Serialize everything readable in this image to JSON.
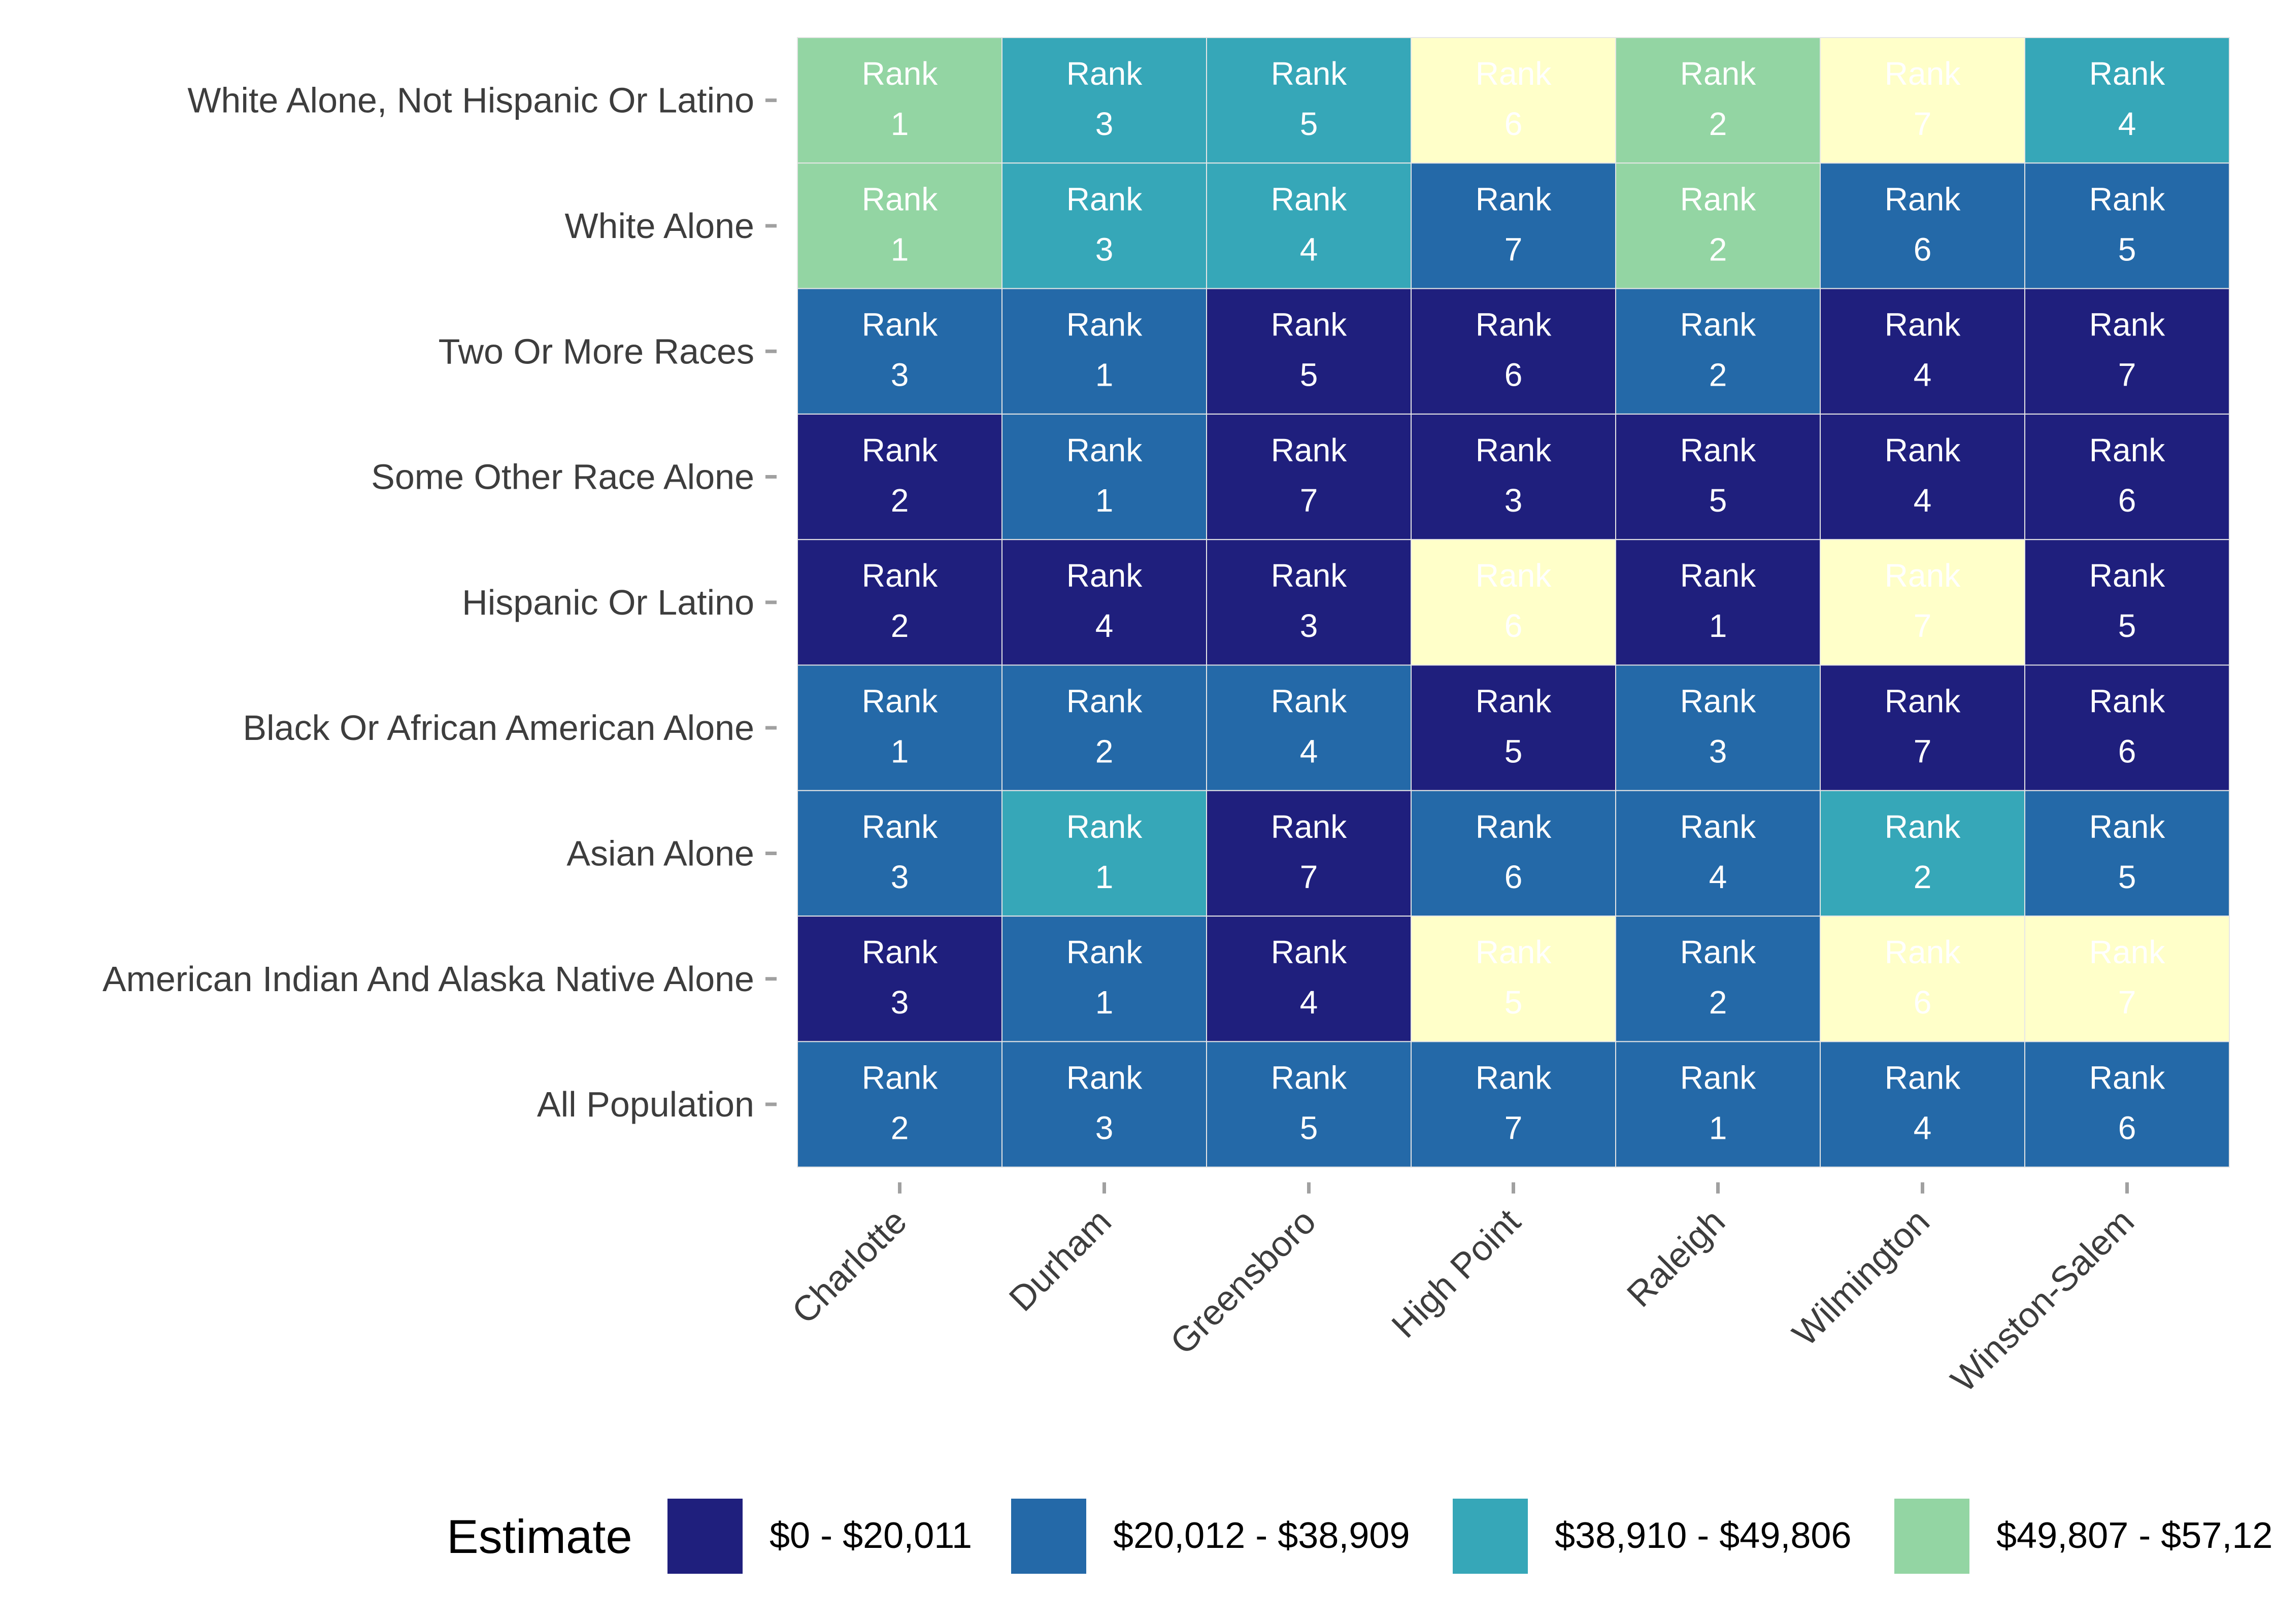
{
  "chart_data": {
    "type": "heatmap",
    "title": "",
    "xlabel": "",
    "ylabel": "",
    "cell_label_prefix": "Rank",
    "x_categories": [
      "Charlotte",
      "Durham",
      "Greensboro",
      "High Point",
      "Raleigh",
      "Wilmington",
      "Winston-Salem"
    ],
    "y_categories": [
      "White Alone, Not Hispanic Or Latino",
      "White Alone",
      "Two Or More Races",
      "Some Other Race Alone",
      "Hispanic Or Latino",
      "Black Or African American Alone",
      "Asian Alone",
      "American Indian And Alaska Native Alone",
      "All Population"
    ],
    "ranks": [
      [
        1,
        3,
        5,
        6,
        2,
        7,
        4
      ],
      [
        1,
        3,
        4,
        7,
        2,
        6,
        5
      ],
      [
        3,
        1,
        5,
        6,
        2,
        4,
        7
      ],
      [
        2,
        1,
        7,
        3,
        5,
        4,
        6
      ],
      [
        2,
        4,
        3,
        6,
        1,
        7,
        5
      ],
      [
        1,
        2,
        4,
        5,
        3,
        7,
        6
      ],
      [
        3,
        1,
        7,
        6,
        4,
        2,
        5
      ],
      [
        3,
        1,
        4,
        5,
        2,
        6,
        7
      ],
      [
        2,
        3,
        5,
        7,
        1,
        4,
        6
      ]
    ],
    "estimate_bins": [
      [
        3,
        2,
        2,
        4,
        3,
        4,
        2
      ],
      [
        3,
        2,
        2,
        1,
        3,
        1,
        1
      ],
      [
        1,
        1,
        0,
        0,
        1,
        0,
        0
      ],
      [
        0,
        1,
        0,
        0,
        0,
        0,
        0
      ],
      [
        0,
        0,
        0,
        4,
        0,
        4,
        0
      ],
      [
        1,
        1,
        1,
        0,
        1,
        0,
        0
      ],
      [
        1,
        2,
        0,
        1,
        1,
        2,
        1
      ],
      [
        0,
        1,
        0,
        4,
        1,
        4,
        4
      ],
      [
        1,
        1,
        1,
        1,
        1,
        1,
        1
      ]
    ],
    "legend": {
      "title": "Estimate",
      "position": "bottom",
      "bins": [
        {
          "label": "$0 - $20,011",
          "color": "#1f1f7d"
        },
        {
          "label": "$20,012 - $38,909",
          "color": "#2469a8"
        },
        {
          "label": "$38,910 - $49,806",
          "color": "#36a7b8"
        },
        {
          "label": "$49,807 - $57,12",
          "color": "#93d5a3"
        }
      ]
    },
    "no_data_color": "#ffffc9",
    "grid": false
  }
}
